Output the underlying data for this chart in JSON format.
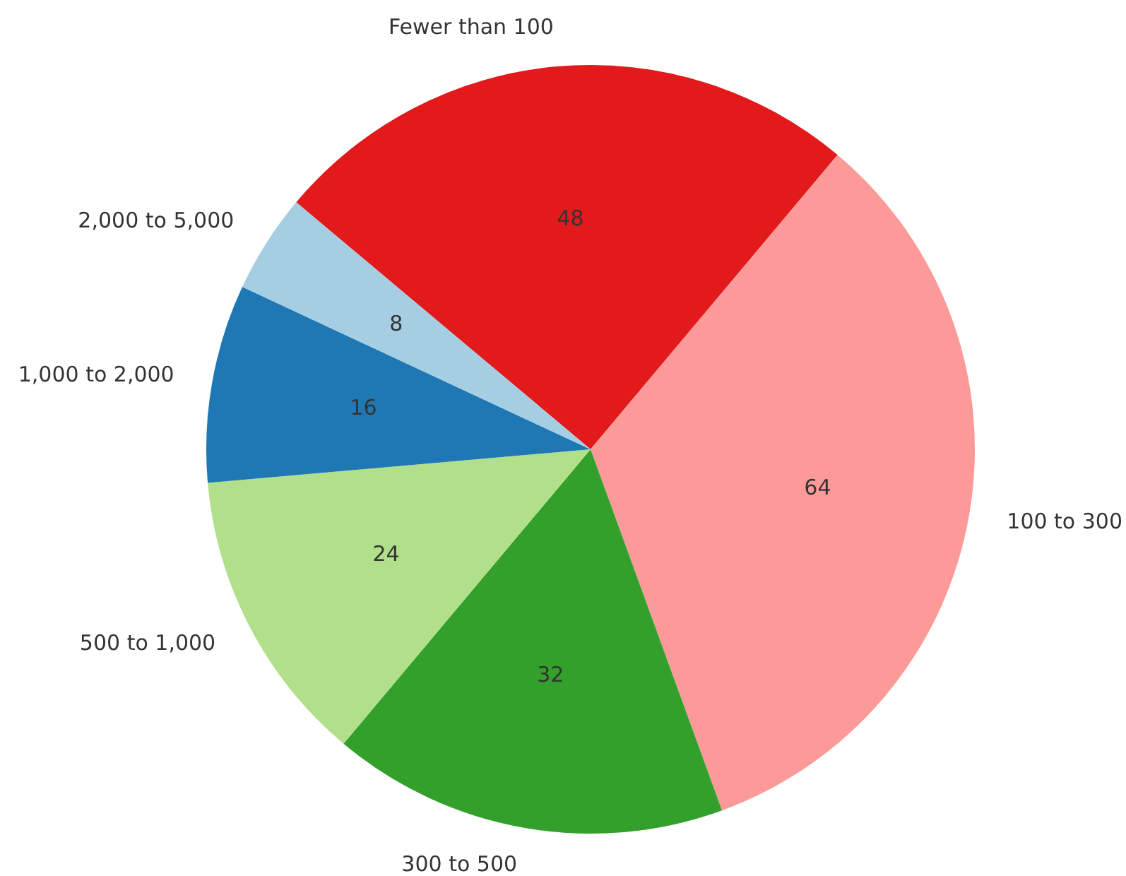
{
  "chart_data": {
    "type": "pie",
    "categories": [
      "Fewer than 100",
      "100 to 300",
      "300 to 500",
      "500 to 1,000",
      "1,000 to 2,000",
      "2,000 to 5,000"
    ],
    "values": [
      48,
      64,
      32,
      24,
      16,
      8
    ],
    "colors": [
      "#e31a1c",
      "#fb9a99",
      "#33a02c",
      "#b2df8a",
      "#1f78b4",
      "#a6cee3"
    ],
    "data_labels": true,
    "legend": false
  }
}
